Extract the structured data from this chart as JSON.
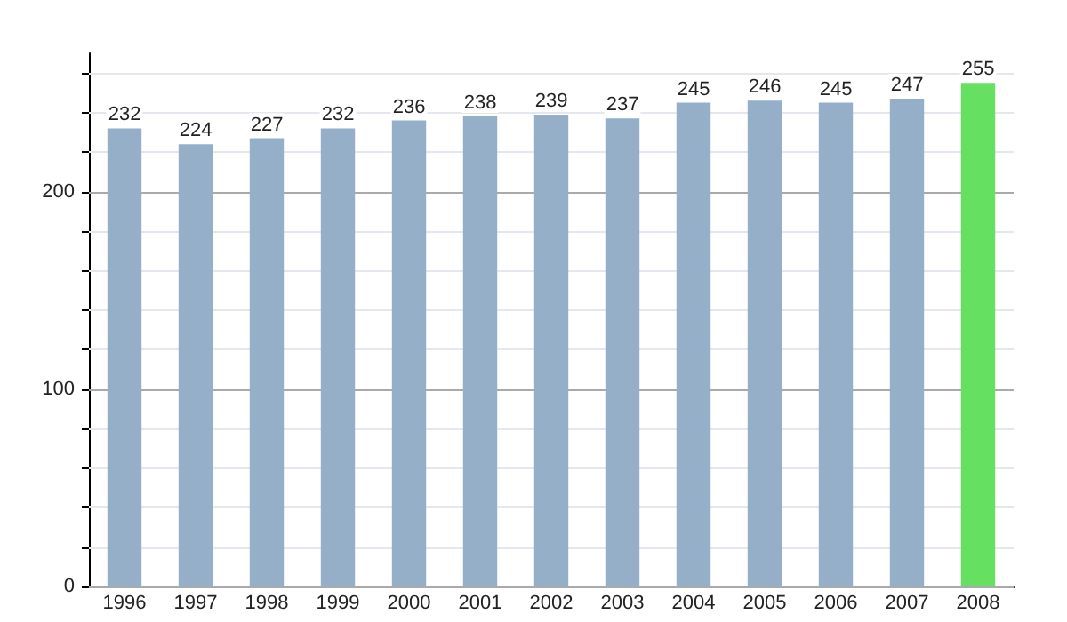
{
  "chart_data": {
    "type": "bar",
    "categories": [
      "1996",
      "1997",
      "1998",
      "1999",
      "2000",
      "2001",
      "2002",
      "2003",
      "2004",
      "2005",
      "2006",
      "2007",
      "2008"
    ],
    "values": [
      232,
      224,
      227,
      232,
      236,
      238,
      239,
      237,
      245,
      246,
      245,
      247,
      255
    ],
    "colors": [
      "#95afc9",
      "#95afc9",
      "#95afc9",
      "#95afc9",
      "#95afc9",
      "#95afc9",
      "#95afc9",
      "#95afc9",
      "#95afc9",
      "#95afc9",
      "#95afc9",
      "#95afc9",
      "#66e060"
    ],
    "ylim": [
      0,
      270
    ],
    "yticks": [
      0,
      {
        "value": 20,
        "label": null
      },
      {
        "value": 40,
        "label": null
      },
      {
        "value": 60,
        "label": null
      },
      {
        "value": 80,
        "label": null
      },
      100,
      {
        "value": 120,
        "label": null
      },
      {
        "value": 140,
        "label": null
      },
      {
        "value": 160,
        "label": null
      },
      {
        "value": 180,
        "label": null
      },
      200,
      {
        "value": 220,
        "label": null
      },
      {
        "value": 240,
        "label": null
      },
      {
        "value": 260,
        "label": null
      }
    ],
    "grid": true,
    "data_labels": true
  }
}
